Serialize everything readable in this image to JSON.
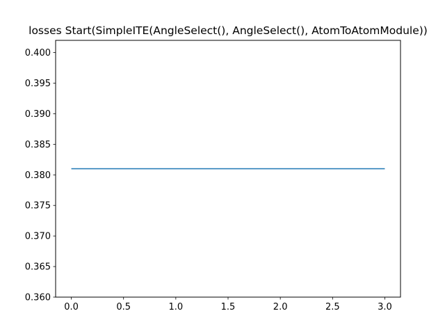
{
  "chart_data": {
    "type": "line",
    "title": "losses Start(SimpleITE(AngleSelect(), AngleSelect(), AtomToAtomModule))",
    "xlabel": "",
    "ylabel": "",
    "x": [
      0,
      1,
      2,
      3
    ],
    "series": [
      {
        "values": [
          0.381,
          0.381,
          0.381,
          0.381
        ],
        "color": "#1f77b4"
      }
    ],
    "xlim": [
      -0.15,
      3.15
    ],
    "ylim": [
      0.36,
      0.402
    ],
    "xticks": [
      0.0,
      0.5,
      1.0,
      1.5,
      2.0,
      2.5,
      3.0
    ],
    "xtick_labels": [
      "0.0",
      "0.5",
      "1.0",
      "1.5",
      "2.0",
      "2.5",
      "3.0"
    ],
    "yticks": [
      0.36,
      0.365,
      0.37,
      0.375,
      0.38,
      0.385,
      0.39,
      0.395,
      0.4
    ],
    "ytick_labels": [
      "0.360",
      "0.365",
      "0.370",
      "0.375",
      "0.380",
      "0.385",
      "0.390",
      "0.395",
      "0.400"
    ],
    "grid": false,
    "legend": "none"
  }
}
